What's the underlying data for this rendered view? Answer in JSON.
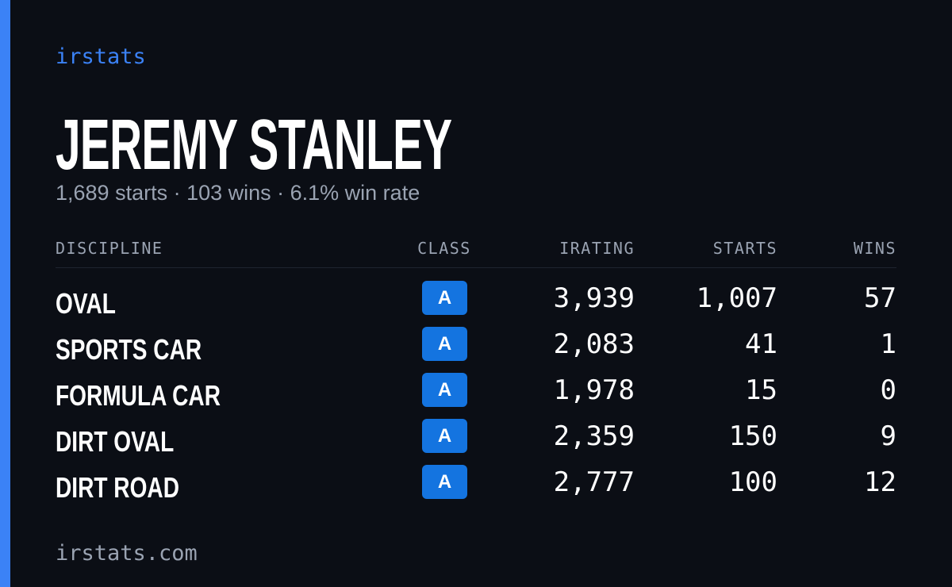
{
  "brand": "irstats",
  "header": {
    "title": "JEREMY STANLEY",
    "summary": "1,689 starts · 103 wins · 6.1% win rate"
  },
  "table": {
    "columns": [
      "DISCIPLINE",
      "CLASS",
      "IRATING",
      "STARTS",
      "WINS"
    ],
    "rows": [
      [
        "OVAL",
        "A",
        "3,939",
        "1,007",
        "57"
      ],
      [
        "SPORTS CAR",
        "A",
        "2,083",
        "41",
        "1"
      ],
      [
        "FORMULA CAR",
        "A",
        "1,978",
        "15",
        "0"
      ],
      [
        "DIRT OVAL",
        "A",
        "2,359",
        "150",
        "9"
      ],
      [
        "DIRT ROAD",
        "A",
        "2,777",
        "100",
        "12"
      ]
    ]
  },
  "footer": {
    "url": "irstats.com"
  }
}
